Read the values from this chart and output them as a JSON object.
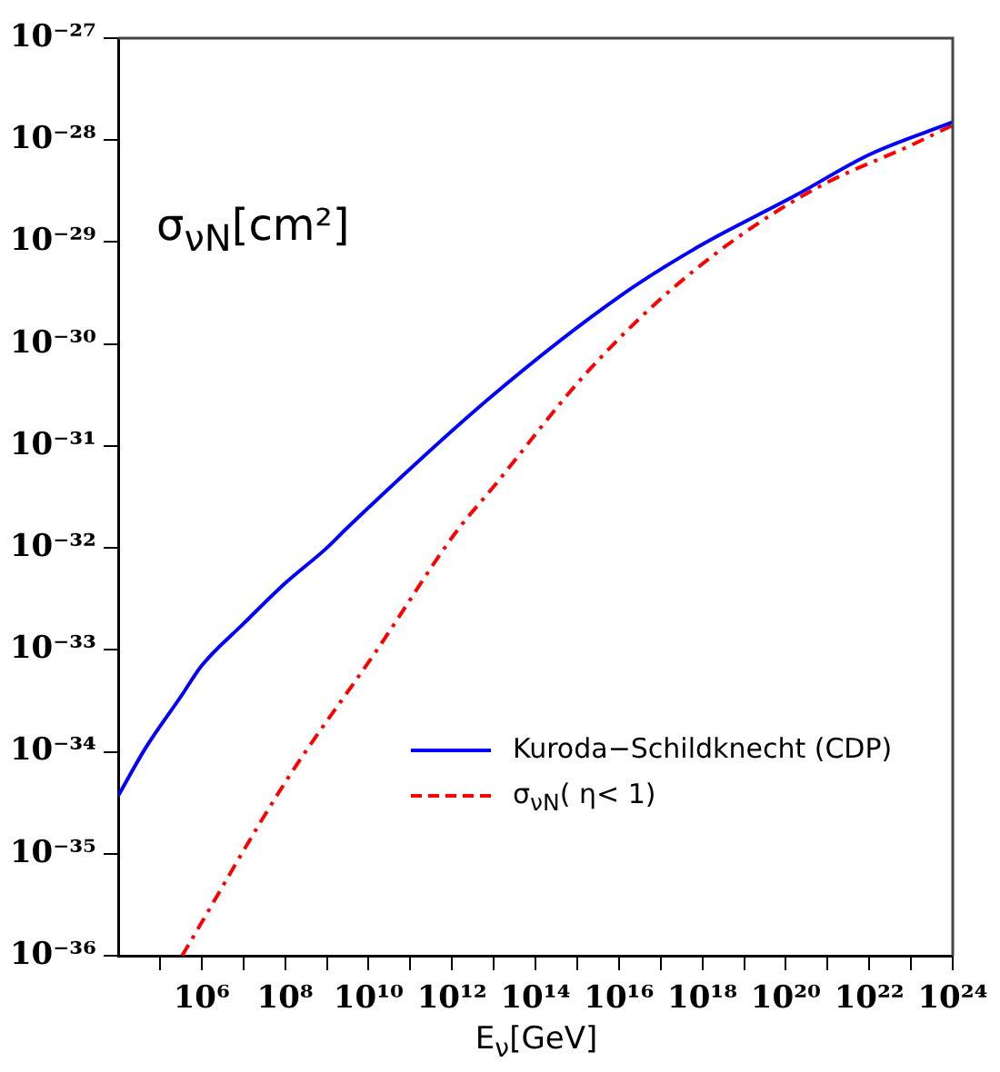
{
  "chart_data": {
    "type": "line",
    "xlabel": "E$_{ν}$[GeV]",
    "ylabel": "σ$_{νN}$[cm²]",
    "log": "xy",
    "grid": false,
    "legend": "bottom right",
    "marker": "none",
    "xlim": [
      10000.0,
      1e+24
    ],
    "ylim": [
      1e-36,
      1e-27
    ],
    "xticks": [
      {
        "value": 100000.0,
        "label": null
      },
      {
        "value": 1000000.0,
        "label": "10⁶"
      },
      {
        "value": 10000000.0,
        "label": null
      },
      {
        "value": 100000000.0,
        "label": "10⁸"
      },
      {
        "value": 1000000000.0,
        "label": null
      },
      {
        "value": 10000000000.0,
        "label": "10¹⁰"
      },
      {
        "value": 100000000000.0,
        "label": null
      },
      {
        "value": 1000000000000.0,
        "label": "10¹²"
      },
      {
        "value": 10000000000000.0,
        "label": null
      },
      {
        "value": 100000000000000.0,
        "label": "10¹⁴"
      },
      {
        "value": 1000000000000000.0,
        "label": null
      },
      {
        "value": 1e+16,
        "label": "10¹⁶"
      },
      {
        "value": 1e+17,
        "label": null
      },
      {
        "value": 1e+18,
        "label": "10¹⁸"
      },
      {
        "value": 1e+19,
        "label": null
      },
      {
        "value": 1e+20,
        "label": "10²⁰"
      },
      {
        "value": 1e+21,
        "label": null
      },
      {
        "value": 1e+22,
        "label": "10²²"
      },
      {
        "value": 1e+23,
        "label": null
      },
      {
        "value": 1e+24,
        "label": "10²⁴"
      }
    ],
    "yticks": [
      {
        "value": 1e-36,
        "label": "10⁻³⁶"
      },
      {
        "value": 1e-35,
        "label": "10⁻³⁵"
      },
      {
        "value": 1e-34,
        "label": "10⁻³⁴"
      },
      {
        "value": 1e-33,
        "label": "10⁻³³"
      },
      {
        "value": 1e-32,
        "label": "10⁻³²"
      },
      {
        "value": 1e-31,
        "label": "10⁻³¹"
      },
      {
        "value": 1e-30,
        "label": "10⁻³⁰"
      },
      {
        "value": 1e-29,
        "label": "10⁻²⁹"
      },
      {
        "value": 1e-28,
        "label": "10⁻²⁸"
      },
      {
        "value": 1e-27,
        "label": "10⁻²⁷"
      }
    ],
    "series": [
      {
        "name": "Kuroda−Schildknecht (CDP)",
        "color": "#0000ff",
        "line_style": "solid",
        "x": [
          10000.0,
          46000.0,
          320000.0,
          1000000.0,
          10000000.0,
          100000000.0,
          1000000000.0,
          3200000000.0,
          10000000000000.0,
          1e+16,
          8e+17,
          1.8e+20,
          1e+22,
          1e+24
        ],
        "values": [
          3.7e-35,
          1.1e-34,
          3.5e-34,
          7e-34,
          1.8e-33,
          4.5e-33,
          1e-32,
          1.6e-32,
          3.2e-31,
          2.9e-30,
          9e-30,
          2.9e-29,
          7.2e-29,
          1.5e-28
        ]
      },
      {
        "name": "σ$_{νN}$( η< 1)",
        "color": "#ff0000",
        "line_style": "dashed",
        "x": [
          340000.0,
          100000000.0,
          16000000000.0,
          1200000000000.0,
          10000000000000.0,
          1400000000000000.0,
          7.6e+16,
          5.8e+18,
          6.3e+20,
          1e+23,
          1e+24
        ],
        "values": [
          1e-36,
          5e-35,
          1e-33,
          1.4e-32,
          4e-32,
          4.8e-31,
          2.5e-30,
          1.05e-29,
          3.5e-29,
          8.9e-29,
          1.4e-28
        ]
      }
    ]
  }
}
